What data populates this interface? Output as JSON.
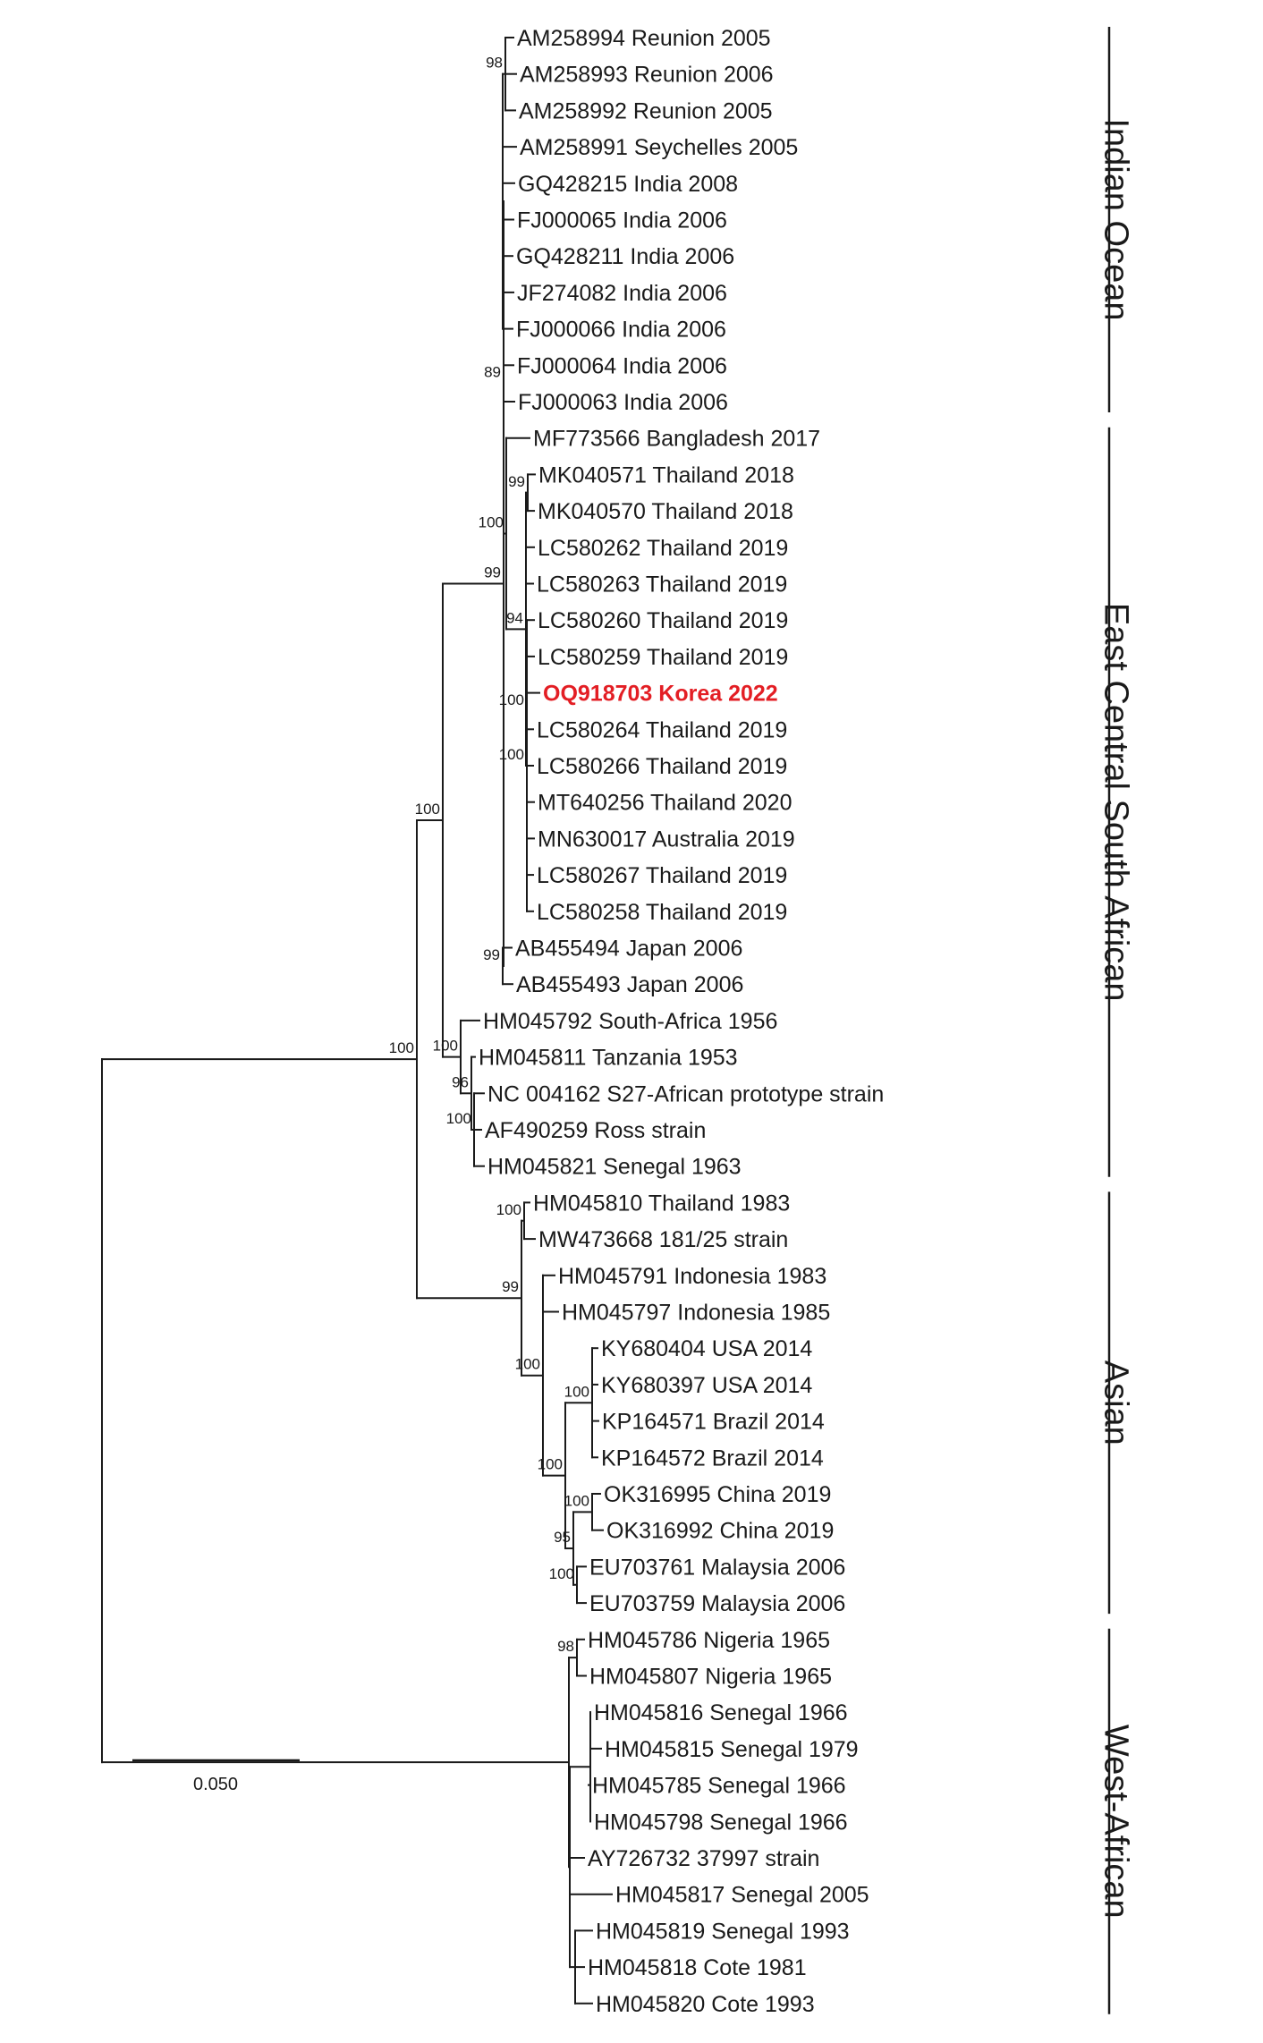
{
  "colors": {
    "line": "#1a1a1a",
    "text": "#1a1a1a",
    "highlight": "#e31e24"
  },
  "tips": [
    "AM258994 Reunion 2005",
    "AM258993 Reunion 2006",
    "AM258992 Reunion 2005",
    "AM258991 Seychelles 2005",
    "GQ428215 India 2008",
    "FJ000065 India 2006",
    "GQ428211 India 2006",
    "JF274082 India 2006",
    "FJ000066 India 2006",
    "FJ000064 India 2006",
    "FJ000063 India 2006",
    "MF773566 Bangladesh 2017",
    "MK040571 Thailand 2018",
    "MK040570 Thailand 2018",
    "LC580262 Thailand 2019",
    "LC580263 Thailand 2019",
    "LC580260 Thailand 2019",
    "LC580259 Thailand 2019",
    "OQ918703 Korea 2022",
    "LC580264 Thailand 2019",
    "LC580266 Thailand 2019",
    "MT640256 Thailand 2020",
    "MN630017 Australia 2019",
    "LC580267 Thailand 2019",
    "LC580258 Thailand 2019",
    "AB455494 Japan 2006",
    "AB455493 Japan 2006",
    "HM045792 South-Africa 1956",
    "HM045811 Tanzania 1953",
    "NC 004162 S27-African prototype strain",
    "AF490259 Ross strain",
    "HM045821 Senegal 1963",
    "HM045810 Thailand 1983",
    "MW473668 181/25 strain",
    "HM045791 Indonesia 1983",
    "HM045797 Indonesia 1985",
    "KY680404 USA 2014",
    "KY680397 USA 2014",
    "KP164571 Brazil 2014",
    "KP164572 Brazil 2014",
    "OK316995 China 2019",
    "OK316992 China 2019",
    "EU703761 Malaysia 2006",
    "EU703759 Malaysia 2006",
    "HM045786 Nigeria 1965",
    "HM045807 Nigeria 1965",
    "HM045816 Senegal 1966",
    "HM045815 Senegal 1979",
    "HM045785 Senegal 1966",
    "HM045798 Senegal 1966",
    "AY726732 37997 strain",
    "HM045817 Senegal 2005",
    "HM045819 Senegal 1993",
    "HM045818 Cote 1981",
    "HM045820 Cote 1993"
  ],
  "highlight_tip": 18,
  "bootstrap": [
    "98",
    "89",
    "99",
    "100",
    "100",
    "94",
    "100",
    "99",
    "99",
    "100",
    "96",
    "100",
    "100",
    "100",
    "100",
    "100",
    "100",
    "95",
    "100",
    "100",
    "99",
    "100",
    "98"
  ],
  "clades": [
    {
      "name": "Indian Ocean",
      "first": 0,
      "last": 10
    },
    {
      "name": "East Central South African",
      "first": 11,
      "last": 31
    },
    {
      "name": "Asian",
      "first": 32,
      "last": 43
    },
    {
      "name": "West-African",
      "first": 44,
      "last": 54
    }
  ],
  "scale_bar": {
    "label": "0.050"
  }
}
